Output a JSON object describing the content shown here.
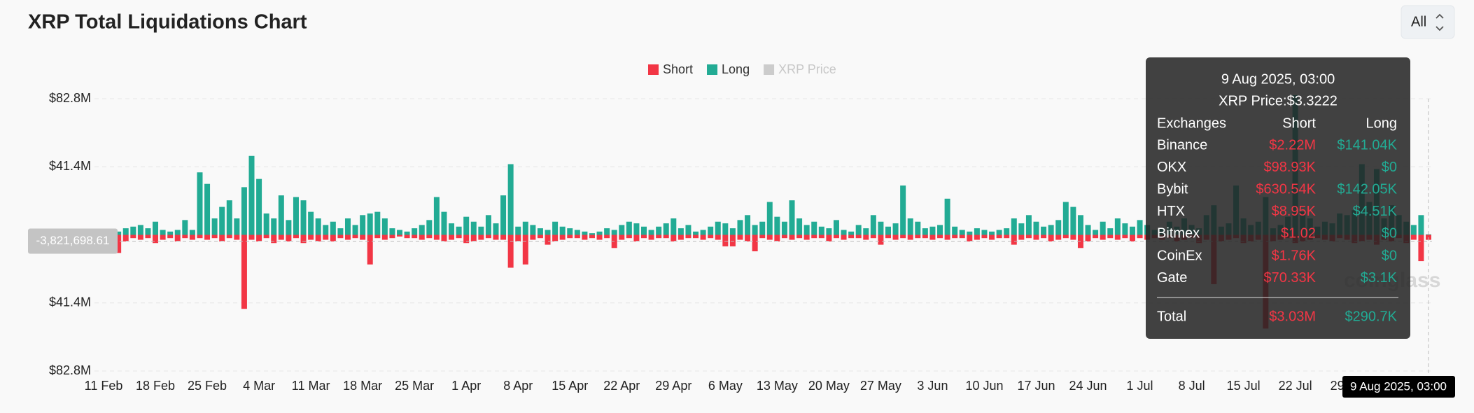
{
  "page": {
    "title": "XRP Total Liquidations Chart",
    "range_select": "All",
    "watermark": "coinglass"
  },
  "chart_data": {
    "type": "bar",
    "categories": [
      "11 Feb",
      null,
      null,
      null,
      null,
      null,
      null,
      "18 Feb",
      null,
      null,
      null,
      null,
      null,
      null,
      "25 Feb",
      null,
      null,
      null,
      null,
      null,
      null,
      "4 Mar",
      null,
      null,
      null,
      null,
      null,
      null,
      "11 Mar",
      null,
      null,
      null,
      null,
      null,
      null,
      "18 Mar",
      null,
      null,
      null,
      null,
      null,
      null,
      "25 Mar",
      null,
      null,
      null,
      null,
      null,
      null,
      "1 Apr",
      null,
      null,
      null,
      null,
      null,
      null,
      "8 Apr",
      null,
      null,
      null,
      null,
      null,
      null,
      "15 Apr",
      null,
      null,
      null,
      null,
      null,
      null,
      "22 Apr",
      null,
      null,
      null,
      null,
      null,
      null,
      "29 Apr",
      null,
      null,
      null,
      null,
      null,
      null,
      "6 May",
      null,
      null,
      null,
      null,
      null,
      null,
      "13 May",
      null,
      null,
      null,
      null,
      null,
      null,
      "20 May",
      null,
      null,
      null,
      null,
      null,
      null,
      "27 May",
      null,
      null,
      null,
      null,
      null,
      null,
      "3 Jun",
      null,
      null,
      null,
      null,
      null,
      null,
      "10 Jun",
      null,
      null,
      null,
      null,
      null,
      null,
      "17 Jun",
      null,
      null,
      null,
      null,
      null,
      null,
      "24 Jun",
      null,
      null,
      null,
      null,
      null,
      null,
      "1 Jul",
      null,
      null,
      null,
      null,
      null,
      null,
      "8 Jul",
      null,
      null,
      null,
      null,
      null,
      null,
      "15 Jul",
      null,
      null,
      null,
      null,
      null,
      null,
      "22 Jul",
      null,
      null,
      null,
      null,
      null,
      null,
      "29 Jul",
      null,
      null,
      null,
      null,
      null,
      null,
      null,
      null,
      null,
      null,
      null
    ],
    "series": [
      {
        "name": "Short",
        "color": "#f23645",
        "values": [
          -2,
          -3,
          -11,
          -4,
          -2,
          -3,
          -2,
          -5,
          -3,
          -2,
          -4,
          -2,
          -3,
          -2,
          -3,
          -2,
          -4,
          -2,
          -3,
          -45,
          -3,
          -4,
          -2,
          -5,
          -3,
          -4,
          -2,
          -5,
          -3,
          -4,
          -3,
          -4,
          -2,
          -3,
          -2,
          -3,
          -18,
          -2,
          -3,
          -2,
          -1,
          -2,
          -2,
          -3,
          -2,
          -3,
          -4,
          -3,
          -2,
          -5,
          -4,
          -3,
          -2,
          -3,
          -3,
          -20,
          -4,
          -18,
          -3,
          -2,
          -6,
          -4,
          -3,
          -2,
          -2,
          -3,
          -2,
          -3,
          -2,
          -8,
          -3,
          -2,
          -4,
          -2,
          -3,
          -2,
          -2,
          -4,
          -3,
          -2,
          -2,
          -3,
          -2,
          -3,
          -7,
          -7,
          -3,
          -4,
          -10,
          -2,
          -3,
          -4,
          -2,
          -3,
          -2,
          -3,
          -2,
          -2,
          -4,
          -2,
          -3,
          -2,
          -2,
          -3,
          -2,
          -6,
          -2,
          -3,
          -2,
          -3,
          -2,
          -2,
          -3,
          -2,
          -3,
          -2,
          -2,
          -4,
          -3,
          -2,
          -3,
          -2,
          -2,
          -6,
          -3,
          -2,
          -3,
          -2,
          -4,
          -3,
          -2,
          -3,
          -8,
          -4,
          -2,
          -3,
          -2,
          -3,
          -2,
          -4,
          -2,
          -3,
          -2,
          -3,
          -2,
          -4,
          -3,
          -2,
          -5,
          -3,
          -30,
          -4,
          -3,
          -2,
          -5,
          -4,
          -3,
          -57,
          -4,
          -3,
          -2,
          -5,
          -4,
          -3,
          -2,
          -3,
          -4,
          -2,
          -3,
          -5,
          -4,
          -3,
          -6,
          -3,
          -4,
          -2,
          -5,
          -3,
          -16,
          -3.03
        ]
      },
      {
        "name": "Long",
        "color": "#22ab94",
        "values": [
          2,
          3,
          2,
          4,
          5,
          6,
          4,
          8,
          3,
          2,
          3,
          9,
          3,
          38,
          31,
          10,
          17,
          21,
          10,
          29,
          48,
          34,
          13,
          10,
          24,
          9,
          23,
          21,
          14,
          10,
          6,
          8,
          4,
          10,
          6,
          12,
          13,
          14,
          10,
          4,
          3,
          2,
          4,
          6,
          9,
          23,
          14,
          7,
          5,
          11,
          8,
          5,
          12,
          7,
          24,
          43,
          5,
          8,
          6,
          4,
          3,
          8,
          5,
          4,
          3,
          2,
          1,
          2,
          4,
          3,
          6,
          8,
          7,
          5,
          3,
          5,
          7,
          10,
          4,
          6,
          2,
          3,
          5,
          8,
          7,
          4,
          9,
          12,
          6,
          8,
          20,
          11,
          8,
          21,
          10,
          6,
          8,
          5,
          4,
          9,
          3,
          2,
          6,
          4,
          12,
          8,
          5,
          7,
          30,
          10,
          8,
          4,
          5,
          6,
          22,
          5,
          3,
          2,
          4,
          3,
          2,
          3,
          4,
          10,
          7,
          12,
          8,
          5,
          6,
          9,
          20,
          17,
          12,
          6,
          3,
          8,
          4,
          10,
          7,
          5,
          9,
          6,
          3,
          4,
          8,
          5,
          10,
          6,
          4,
          12,
          18,
          5,
          7,
          30,
          10,
          6,
          8,
          23,
          4,
          6,
          11,
          85,
          14,
          10,
          5,
          8,
          7,
          13,
          12,
          15,
          43,
          20,
          40,
          10,
          18,
          12,
          8,
          6,
          12,
          0.29
        ]
      },
      {
        "name": "XRP Price",
        "color": "#cccccc",
        "disabled": true
      }
    ],
    "ylim": [
      -82.8,
      82.8
    ],
    "yticks": [
      {
        "value": -82.8,
        "label": "$82.8M"
      },
      {
        "value": -41.4,
        "label": "$41.4M"
      },
      {
        "value": 41.4,
        "label": "$41.4M"
      },
      {
        "value": 82.8,
        "label": "$82.8M"
      }
    ],
    "grid": true,
    "crosshair": {
      "x_label": "9 Aug 2025, 03:00",
      "y": {
        "value": -3.82169861,
        "label": "-3,821,698.61"
      }
    }
  },
  "tooltip": {
    "title": "9 Aug 2025, 03:00",
    "price": "XRP Price:$3.3222",
    "header": [
      "Exchanges",
      "Short",
      "Long"
    ],
    "rows": [
      [
        "Binance",
        "$2.22M",
        "$141.04K"
      ],
      [
        "OKX",
        "$98.93K",
        "$0"
      ],
      [
        "Bybit",
        "$630.54K",
        "$142.05K"
      ],
      [
        "HTX",
        "$8.95K",
        "$4.51K"
      ],
      [
        "Bitmex",
        "$1.02",
        "$0"
      ],
      [
        "CoinEx",
        "$1.76K",
        "$0"
      ],
      [
        "Gate",
        "$70.33K",
        "$3.1K"
      ]
    ],
    "total": [
      "Total",
      "$3.03M",
      "$290.7K"
    ]
  }
}
